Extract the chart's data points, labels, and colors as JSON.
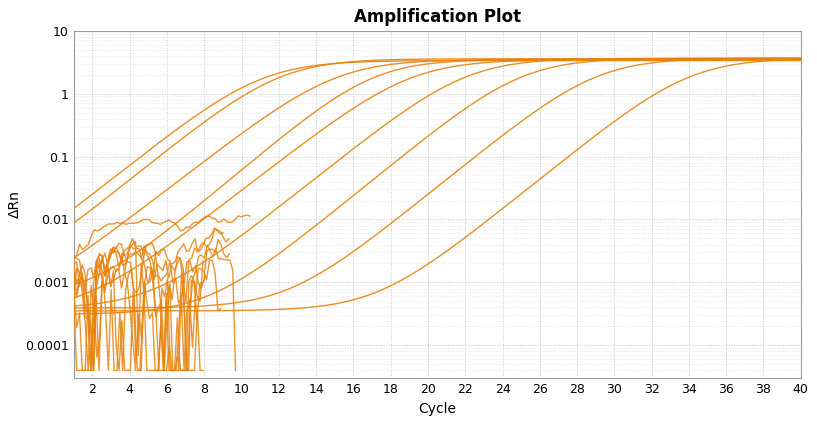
{
  "title": "Amplification Plot",
  "xlabel": "Cycle",
  "ylabel": "ΔRn",
  "xlim": [
    1,
    40
  ],
  "ylim_log": [
    3e-05,
    10
  ],
  "line_color": "#E8820C",
  "line_width": 1.0,
  "background_color": "#ffffff",
  "grid_color": "#cccccc",
  "title_fontsize": 12,
  "axis_label_fontsize": 10,
  "tick_fontsize": 9,
  "plateau": 3.5,
  "baseline": 0.0005,
  "ct_values": [
    11,
    12,
    15,
    17,
    19,
    22,
    25,
    29,
    34
  ],
  "steepness": 0.55
}
